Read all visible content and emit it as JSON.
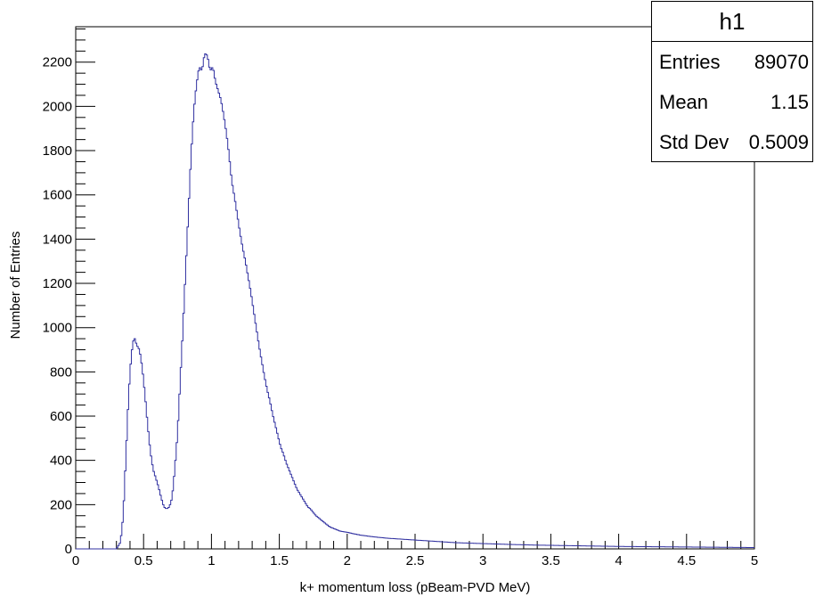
{
  "chart_data": {
    "type": "histogram",
    "title": "",
    "xlabel": "k+ momentum loss (pBeam-PVD MeV)",
    "ylabel": "Number of Entries",
    "xlim": [
      0,
      5
    ],
    "ylim": [
      0,
      2360
    ],
    "x_ticks": [
      0,
      0.5,
      1,
      1.5,
      2,
      2.5,
      3,
      3.5,
      4,
      4.5,
      5
    ],
    "x_tick_labels": [
      "0",
      "0.5",
      "1",
      "1.5",
      "2",
      "2.5",
      "3",
      "3.5",
      "4",
      "4.5",
      "5"
    ],
    "y_ticks": [
      0,
      200,
      400,
      600,
      800,
      1000,
      1200,
      1400,
      1600,
      1800,
      2000,
      2200
    ],
    "y_tick_labels": [
      "0",
      "200",
      "400",
      "600",
      "800",
      "1000",
      "1200",
      "1400",
      "1600",
      "1800",
      "2000",
      "2200"
    ],
    "line_color": "#3030a0",
    "series": [
      {
        "points": [
          [
            0.3,
            0
          ],
          [
            0.33,
            30
          ],
          [
            0.35,
            150
          ],
          [
            0.37,
            420
          ],
          [
            0.39,
            700
          ],
          [
            0.41,
            880
          ],
          [
            0.43,
            960
          ],
          [
            0.45,
            920
          ],
          [
            0.47,
            900
          ],
          [
            0.49,
            820
          ],
          [
            0.51,
            700
          ],
          [
            0.53,
            560
          ],
          [
            0.55,
            440
          ],
          [
            0.57,
            360
          ],
          [
            0.59,
            320
          ],
          [
            0.61,
            280
          ],
          [
            0.63,
            230
          ],
          [
            0.65,
            190
          ],
          [
            0.67,
            180
          ],
          [
            0.69,
            190
          ],
          [
            0.71,
            230
          ],
          [
            0.73,
            360
          ],
          [
            0.75,
            520
          ],
          [
            0.77,
            760
          ],
          [
            0.79,
            1000
          ],
          [
            0.81,
            1260
          ],
          [
            0.83,
            1520
          ],
          [
            0.85,
            1780
          ],
          [
            0.87,
            1980
          ],
          [
            0.89,
            2100
          ],
          [
            0.91,
            2180
          ],
          [
            0.93,
            2160
          ],
          [
            0.95,
            2240
          ],
          [
            0.97,
            2230
          ],
          [
            0.99,
            2160
          ],
          [
            1.01,
            2180
          ],
          [
            1.03,
            2110
          ],
          [
            1.05,
            2070
          ],
          [
            1.07,
            2030
          ],
          [
            1.09,
            1960
          ],
          [
            1.11,
            1880
          ],
          [
            1.13,
            1780
          ],
          [
            1.15,
            1660
          ],
          [
            1.17,
            1590
          ],
          [
            1.19,
            1510
          ],
          [
            1.21,
            1430
          ],
          [
            1.23,
            1360
          ],
          [
            1.25,
            1300
          ],
          [
            1.27,
            1230
          ],
          [
            1.29,
            1160
          ],
          [
            1.31,
            1080
          ],
          [
            1.33,
            1000
          ],
          [
            1.35,
            920
          ],
          [
            1.37,
            850
          ],
          [
            1.39,
            780
          ],
          [
            1.41,
            720
          ],
          [
            1.43,
            670
          ],
          [
            1.45,
            610
          ],
          [
            1.47,
            560
          ],
          [
            1.49,
            510
          ],
          [
            1.51,
            460
          ],
          [
            1.53,
            430
          ],
          [
            1.55,
            390
          ],
          [
            1.57,
            360
          ],
          [
            1.59,
            330
          ],
          [
            1.61,
            300
          ],
          [
            1.63,
            270
          ],
          [
            1.65,
            250
          ],
          [
            1.67,
            230
          ],
          [
            1.69,
            210
          ],
          [
            1.71,
            190
          ],
          [
            1.73,
            180
          ],
          [
            1.75,
            165
          ],
          [
            1.77,
            150
          ],
          [
            1.79,
            140
          ],
          [
            1.81,
            130
          ],
          [
            1.83,
            120
          ],
          [
            1.85,
            110
          ],
          [
            1.87,
            100
          ],
          [
            1.89,
            95
          ],
          [
            1.91,
            90
          ],
          [
            1.95,
            80
          ],
          [
            2.0,
            75
          ],
          [
            2.05,
            68
          ],
          [
            2.1,
            62
          ],
          [
            2.15,
            58
          ],
          [
            2.2,
            54
          ],
          [
            2.3,
            48
          ],
          [
            2.4,
            44
          ],
          [
            2.5,
            40
          ],
          [
            2.6,
            36
          ],
          [
            2.7,
            32
          ],
          [
            2.8,
            28
          ],
          [
            2.9,
            26
          ],
          [
            3.0,
            24
          ],
          [
            3.2,
            20
          ],
          [
            3.4,
            17
          ],
          [
            3.6,
            15
          ],
          [
            3.8,
            13
          ],
          [
            4.0,
            11
          ],
          [
            4.2,
            10
          ],
          [
            4.4,
            9
          ],
          [
            4.6,
            8
          ],
          [
            4.8,
            7
          ],
          [
            5.0,
            6
          ]
        ]
      }
    ]
  },
  "stats_box": {
    "title": "h1",
    "rows": [
      {
        "label": "Entries",
        "value": "89070"
      },
      {
        "label": "Mean",
        "value": "1.15"
      },
      {
        "label": "Std Dev",
        "value": "0.5009"
      }
    ]
  }
}
